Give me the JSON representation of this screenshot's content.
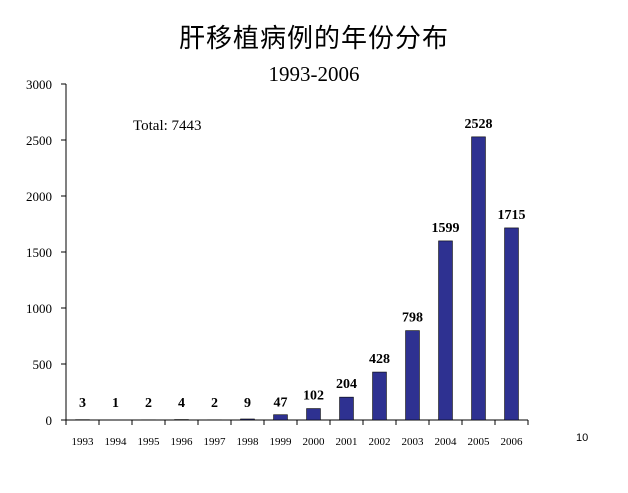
{
  "slide": {
    "title": "肝移植病例的年份分布",
    "subtitle": "1993-2006",
    "page_number": "10"
  },
  "colors": {
    "bar": "#2e3191",
    "bar_stroke": "#000000",
    "axis": "#000000",
    "background": "#ffffff"
  },
  "chart_data": {
    "type": "bar",
    "title": "",
    "xlabel": "",
    "ylabel": "",
    "annotation": "Total: 7443",
    "categories": [
      "1993",
      "1994",
      "1995",
      "1996",
      "1997",
      "1998",
      "1999",
      "2000",
      "2001",
      "2002",
      "2003",
      "2004",
      "2005",
      "2006"
    ],
    "values": [
      3,
      1,
      2,
      4,
      2,
      9,
      47,
      102,
      204,
      428,
      798,
      1599,
      2528,
      1715
    ],
    "data_labels": [
      "3",
      "1",
      "2",
      "4",
      "2",
      "9",
      "47",
      "102",
      "204",
      "428",
      "798",
      "1599",
      "2528",
      "1715"
    ],
    "ylim": [
      0,
      3000
    ],
    "yticks": [
      0,
      500,
      1000,
      1500,
      2000,
      2500,
      3000
    ],
    "ytick_labels": [
      "0",
      "500",
      "1000",
      "1500",
      "2000",
      "2500",
      "3000"
    ],
    "grid": false,
    "legend": "none"
  }
}
